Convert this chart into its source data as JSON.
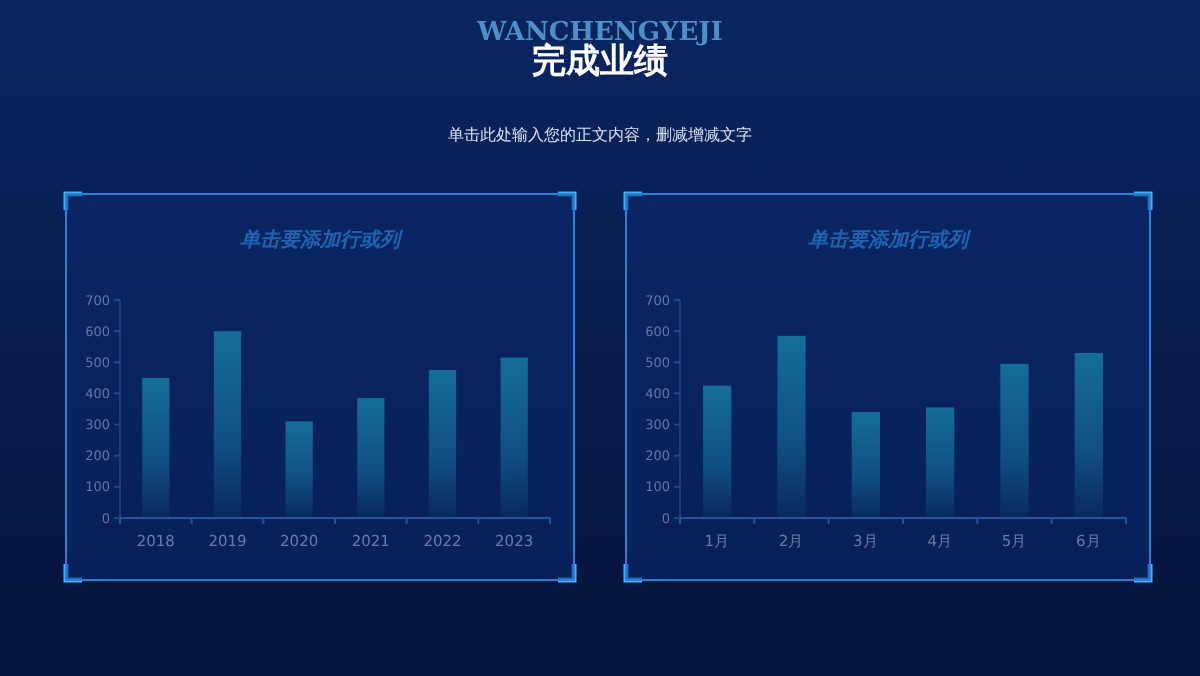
{
  "chart_data": [
    {
      "type": "bar",
      "title": "单击要添加行或列",
      "categories": [
        "2018",
        "2019",
        "2020",
        "2021",
        "2022",
        "2023"
      ],
      "values": [
        450,
        600,
        310,
        385,
        475,
        515
      ],
      "color": "#22bfd0",
      "ylim": [
        0,
        700
      ],
      "yticks": [
        0,
        100,
        200,
        300,
        400,
        500,
        600,
        700
      ],
      "annotations": [
        "WANCHENGYEJI",
        "完成业绩",
        "单击此处输入您的正文内容，删减增减文字"
      ]
    },
    {
      "type": "bar",
      "title": "单击要添加行或列",
      "categories": [
        "1月",
        "2月",
        "3月",
        "4月",
        "5月",
        "6月"
      ],
      "values": [
        425,
        585,
        340,
        355,
        495,
        530
      ],
      "color": "#22bfd0",
      "ylim": [
        0,
        700
      ],
      "yticks": [
        0,
        100,
        200,
        300,
        400,
        500,
        600,
        700
      ]
    }
  ]
}
